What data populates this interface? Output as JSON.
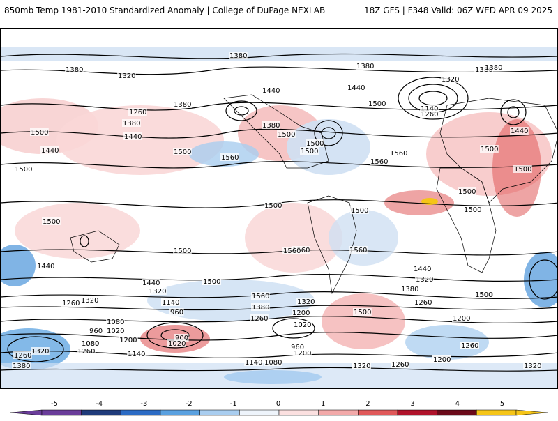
{
  "header": {
    "left_title": "850mb Temp 1981-2010 Standardized Anomaly | College of DuPage NEXLAB",
    "right_title": "18Z GFS | F348 Valid: 06Z WED APR 09 2025"
  },
  "colorbar": {
    "ticks": [
      "-5",
      "-4",
      "-3",
      "-2",
      "-1",
      "0",
      "1",
      "2",
      "3",
      "4",
      "5"
    ],
    "colors": [
      "#6a3d9a",
      "#1f3b7a",
      "#2c6bc4",
      "#5aa1e0",
      "#a9cdef",
      "#eef4fb",
      "#fbe0e0",
      "#f2a9a9",
      "#e0595a",
      "#b0132b",
      "#6b0a1a",
      "#f5c518"
    ]
  },
  "contour_labels": [
    "1380",
    "1380",
    "1320",
    "1380",
    "1440",
    "1380",
    "1440",
    "1500",
    "1380",
    "1320",
    "1380",
    "1260",
    "1380",
    "1380",
    "1500",
    "1440",
    "1500",
    "1500",
    "1140",
    "1260",
    "1440",
    "1500",
    "1440",
    "1500",
    "1560",
    "1560",
    "1500",
    "1500",
    "1560",
    "1500",
    "1500",
    "1500",
    "1500",
    "1500",
    "1500",
    "1560",
    "1500",
    "1560",
    "1500",
    "1560",
    "1440",
    "1440",
    "1320",
    "1320",
    "1500",
    "1500",
    "1440",
    "1380",
    "1260",
    "1320",
    "1560",
    "1380",
    "1260",
    "1200",
    "1080",
    "960",
    "1020",
    "1140",
    "960",
    "1260",
    "1320",
    "1140",
    "1080",
    "1260",
    "1200",
    "1020",
    "900",
    "1020",
    "1200",
    "1140",
    "1080",
    "1020",
    "960",
    "1200",
    "1260",
    "1200",
    "1260",
    "1320",
    "1380",
    "1320",
    "1260",
    "1200",
    "1140",
    "1080",
    "1320",
    "1260",
    "1200",
    "1260",
    "1320",
    "1500",
    "1500"
  ]
}
